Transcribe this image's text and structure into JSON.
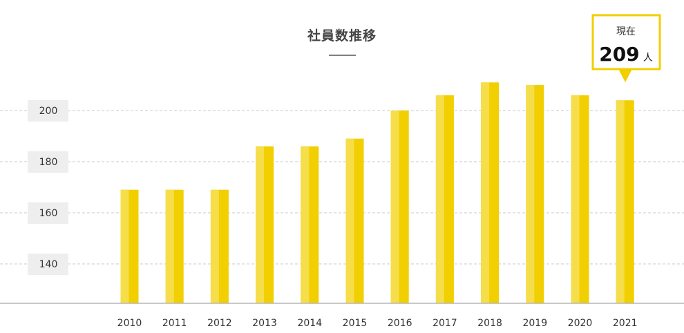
{
  "chart_data": {
    "type": "bar",
    "title": "社員数推移",
    "categories": [
      "2010",
      "2011",
      "2012",
      "2013",
      "2014",
      "2015",
      "2016",
      "2017",
      "2018",
      "2019",
      "2020",
      "2021"
    ],
    "values": [
      169,
      169,
      169,
      186,
      186,
      189,
      200,
      206,
      211,
      210,
      206,
      204
    ],
    "y_ticks": [
      "200",
      "180",
      "160",
      "140"
    ],
    "ylim": [
      125,
      207
    ],
    "grid": "horizontal dashed",
    "colors": {
      "bar": "#f2cf00",
      "bar_highlight": "#f6de4a",
      "callout_border": "#f2cf00"
    }
  },
  "callout": {
    "label": "現在",
    "value": "209",
    "unit": "人"
  }
}
